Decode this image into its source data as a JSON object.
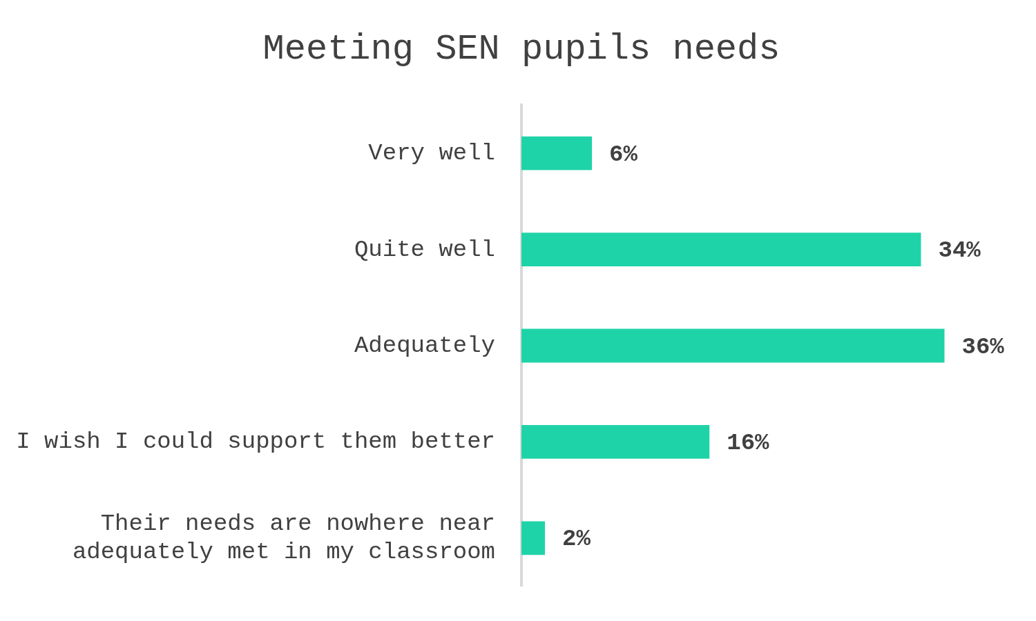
{
  "chart_data": {
    "type": "bar",
    "orientation": "horizontal",
    "title": "Meeting SEN pupils needs",
    "categories": [
      "Very well",
      "Quite well",
      "Adequately",
      "I wish I could support them better",
      "Their needs are nowhere near adequately met in my classroom"
    ],
    "values": [
      6,
      34,
      36,
      16,
      2
    ],
    "value_labels": [
      "6%",
      "34%",
      "36%",
      "16%",
      "2%"
    ],
    "color": "#1fd3a8",
    "legend": false
  }
}
